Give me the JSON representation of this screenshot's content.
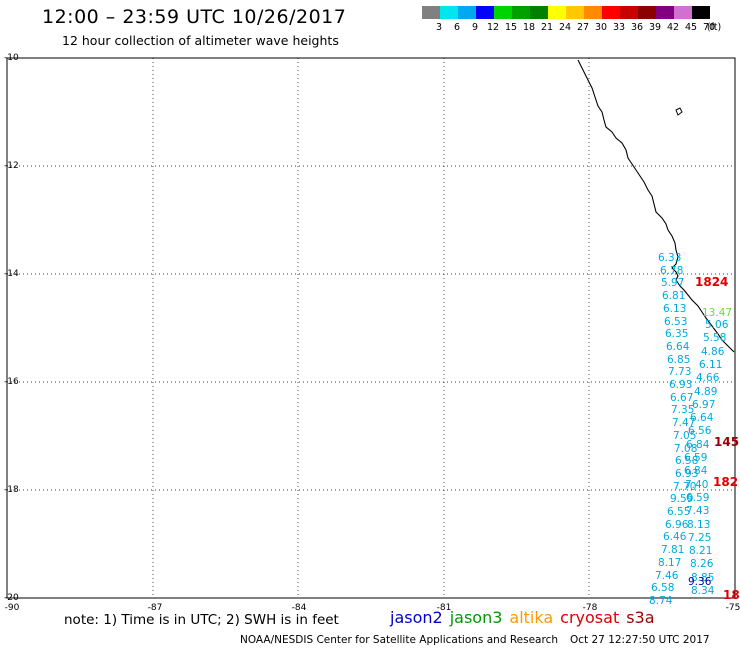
{
  "header": {
    "title": "12:00 – 23:59 UTC 10/26/2017",
    "subtitle": "12 hour collection of altimeter wave heights"
  },
  "legend": {
    "unit": "(ft)",
    "bins": [
      {
        "label": "3",
        "color": "#808080"
      },
      {
        "label": "6",
        "color": "#00e5ee"
      },
      {
        "label": "9",
        "color": "#00a8f0"
      },
      {
        "label": "12",
        "color": "#0000ff"
      },
      {
        "label": "15",
        "color": "#00d400"
      },
      {
        "label": "18",
        "color": "#00a000"
      },
      {
        "label": "21",
        "color": "#008000"
      },
      {
        "label": "24",
        "color": "#ffff00"
      },
      {
        "label": "27",
        "color": "#ffc800"
      },
      {
        "label": "30",
        "color": "#ff8c00"
      },
      {
        "label": "33",
        "color": "#ff0000"
      },
      {
        "label": "36",
        "color": "#c80000"
      },
      {
        "label": "39",
        "color": "#8b0000"
      },
      {
        "label": "42",
        "color": "#800080"
      },
      {
        "label": "45",
        "color": "#d070d0"
      },
      {
        "label": "70",
        "color": "#000000"
      }
    ]
  },
  "map": {
    "lat_labels": [
      "-10",
      "-12",
      "-14",
      "-16",
      "-18",
      "-20"
    ],
    "lon_labels": [
      "-90",
      "-87",
      "-84",
      "-81",
      "-78",
      "-75"
    ],
    "lat_range": [
      -20,
      -10
    ],
    "lon_range": [
      -90,
      -75
    ],
    "grid": "dotted"
  },
  "observations": {
    "cyan_left": [
      "6.33",
      "6.78",
      "5.97",
      "6.81",
      "6.13",
      "6.53",
      "6.35",
      "6.64",
      "6.85",
      "7.73",
      "6.93",
      "6.67",
      "7.35",
      "7.47",
      "7.05",
      "7.08",
      "6.58",
      "6.93",
      "7.70",
      "9.59",
      "6.55",
      "6.96",
      "6.46",
      "7.81",
      "8.17",
      "7.46",
      "6.58",
      "8.74"
    ],
    "cyan_right": [
      "5.06",
      "5.58",
      "4.86",
      "6.11",
      "4.66",
      "4.89",
      "6.97",
      "6.64",
      "6.56",
      "6.84",
      "6.59",
      "6.84",
      "7.40",
      "6.59",
      "7.43",
      "8.13",
      "7.25",
      "8.21",
      "8.26",
      "8.85",
      "8.34"
    ],
    "green": [
      "13.47"
    ],
    "navy": [
      "9.36"
    ],
    "red": [
      "1824",
      "182",
      "18"
    ],
    "darkred": [
      "145"
    ]
  },
  "footer": {
    "note": "note: 1) Time is in UTC; 2) SWH is in feet",
    "satellites": [
      {
        "name": "jason2",
        "color": "#0000cc"
      },
      {
        "name": "jason3",
        "color": "#009900"
      },
      {
        "name": "altika",
        "color": "#ff9900"
      },
      {
        "name": "cryosat",
        "color": "#dd0000"
      },
      {
        "name": "s3a",
        "color": "#990000"
      }
    ],
    "credit": "NOAA/NESDIS Center for Satellite Applications and Research",
    "timestamp": "Oct 27 12:27:50 UTC 2017"
  }
}
